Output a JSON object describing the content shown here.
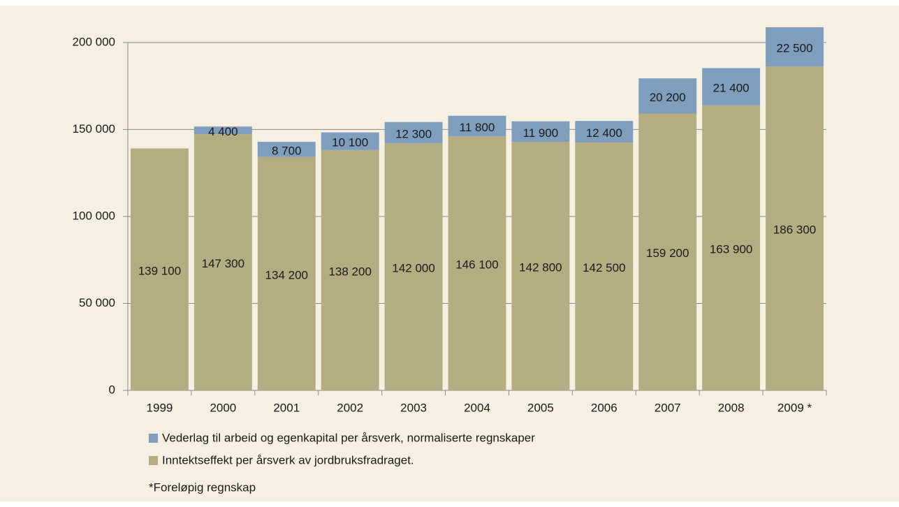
{
  "chart_data": {
    "type": "stacked-bar",
    "categories": [
      "1999",
      "2000",
      "2001",
      "2002",
      "2003",
      "2004",
      "2005",
      "2006",
      "2007",
      "2008",
      "2009 *"
    ],
    "series": [
      {
        "name": "Vederlag til arbeid og egenkapital per årsverk, normaliserte regnskaper",
        "color": "#7f9ebd",
        "values": [
          null,
          4400,
          8700,
          10100,
          12300,
          11800,
          11900,
          12400,
          20200,
          21400,
          22500
        ],
        "value_labels": [
          null,
          "4 400",
          "8 700",
          "10 100",
          "12 300",
          "11 800",
          "11 900",
          "12 400",
          "20 200",
          "21 400",
          "22 500"
        ]
      },
      {
        "name": "Inntektseffekt per årsverk av jordbruksfradraget.",
        "color": "#b5ad82",
        "values": [
          139100,
          147300,
          134200,
          138200,
          142000,
          146100,
          142800,
          142500,
          159200,
          163900,
          186300
        ],
        "value_labels": [
          "139 100",
          "147 300",
          "134 200",
          "138 200",
          "142 000",
          "146 100",
          "142 800",
          "142 500",
          "159 200",
          "163 900",
          "186 300"
        ]
      }
    ],
    "ylim": [
      0,
      210000
    ],
    "yticks": [
      0,
      {
        "value": 50000,
        "label": "50 000"
      },
      {
        "value": 100000,
        "label": "100 000"
      },
      {
        "value": 150000,
        "label": "150 000"
      },
      {
        "value": 200000,
        "label": "200 000"
      }
    ],
    "grid": true,
    "footnote": "*Foreløpig regnskap"
  }
}
